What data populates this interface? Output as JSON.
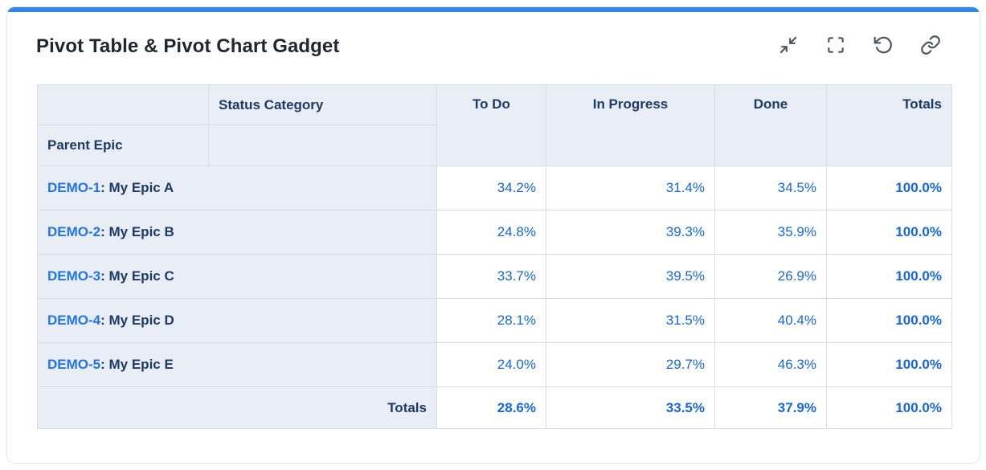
{
  "card": {
    "title": "Pivot Table & Pivot Chart Gadget",
    "toolbar_icons": [
      "collapse-icon",
      "fullscreen-icon",
      "refresh-icon",
      "link-icon"
    ]
  },
  "pivot": {
    "col_group_label": "Status Category",
    "row_group_label": "Parent Epic",
    "columns": [
      "To Do",
      "In Progress",
      "Done",
      "Totals"
    ],
    "rows": [
      {
        "key": "DEMO-1",
        "suffix": ": My Epic A",
        "values": [
          "34.2%",
          "31.4%",
          "34.5%",
          "100.0%"
        ]
      },
      {
        "key": "DEMO-2",
        "suffix": ": My Epic B",
        "values": [
          "24.8%",
          "39.3%",
          "35.9%",
          "100.0%"
        ]
      },
      {
        "key": "DEMO-3",
        "suffix": ": My Epic C",
        "values": [
          "33.7%",
          "39.5%",
          "26.9%",
          "100.0%"
        ]
      },
      {
        "key": "DEMO-4",
        "suffix": ": My Epic D",
        "values": [
          "28.1%",
          "31.5%",
          "40.4%",
          "100.0%"
        ]
      },
      {
        "key": "DEMO-5",
        "suffix": ": My Epic E",
        "values": [
          "24.0%",
          "29.7%",
          "46.3%",
          "100.0%"
        ]
      }
    ],
    "totals_label": "Totals",
    "totals": [
      "28.6%",
      "33.5%",
      "37.9%",
      "100.0%"
    ]
  },
  "colors": {
    "accent_bar": "#2e86f0",
    "header_cell_bg": "#e9edf6",
    "table_border": "#d7dde8",
    "navy_text": "#1d3a66",
    "value_blue": "#1667dd",
    "link_blue": "#2174e8",
    "icon_gray": "#4a5560",
    "title_text": "#21272f"
  }
}
